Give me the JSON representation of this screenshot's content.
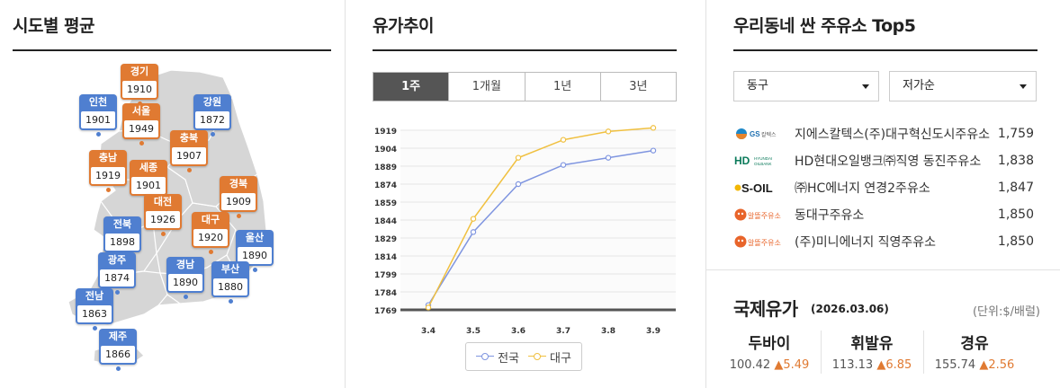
{
  "panels": {
    "sido": {
      "title": "시도별 평균"
    },
    "trend": {
      "title": "유가추이"
    },
    "top5": {
      "title": "우리동네 싼 주유소 Top5"
    }
  },
  "regions": [
    {
      "name": "경기",
      "value": "1910",
      "color": "orange"
    },
    {
      "name": "인천",
      "value": "1901",
      "color": "blue"
    },
    {
      "name": "서울",
      "value": "1949",
      "color": "orange"
    },
    {
      "name": "강원",
      "value": "1872",
      "color": "blue"
    },
    {
      "name": "충북",
      "value": "1907",
      "color": "orange"
    },
    {
      "name": "충남",
      "value": "1919",
      "color": "orange"
    },
    {
      "name": "세종",
      "value": "1901",
      "color": "orange"
    },
    {
      "name": "경북",
      "value": "1909",
      "color": "orange"
    },
    {
      "name": "대전",
      "value": "1926",
      "color": "orange"
    },
    {
      "name": "전북",
      "value": "1898",
      "color": "blue"
    },
    {
      "name": "대구",
      "value": "1920",
      "color": "orange"
    },
    {
      "name": "울산",
      "value": "1890",
      "color": "blue"
    },
    {
      "name": "광주",
      "value": "1874",
      "color": "blue"
    },
    {
      "name": "경남",
      "value": "1890",
      "color": "blue"
    },
    {
      "name": "부산",
      "value": "1880",
      "color": "blue"
    },
    {
      "name": "전남",
      "value": "1863",
      "color": "blue"
    },
    {
      "name": "제주",
      "value": "1866",
      "color": "blue"
    }
  ],
  "colors": {
    "blue": "#4f7fd0",
    "orange": "#e07a32",
    "national_line": "#7f95e0",
    "daegu_line": "#f0c040",
    "up": "#e07a32"
  },
  "tabs": [
    {
      "label": "1주",
      "active": true
    },
    {
      "label": "1개월",
      "active": false
    },
    {
      "label": "1년",
      "active": false
    },
    {
      "label": "3년",
      "active": false
    }
  ],
  "chart_data": {
    "type": "line",
    "x": [
      "3.4",
      "3.5",
      "3.6",
      "3.7",
      "3.8",
      "3.9"
    ],
    "yticks": [
      1769,
      1784,
      1799,
      1814,
      1829,
      1844,
      1859,
      1874,
      1889,
      1904,
      1919
    ],
    "ylim": [
      1769,
      1919
    ],
    "grid": true,
    "series": [
      {
        "name": "전국",
        "color": "#7f95e0",
        "values": [
          1773,
          1834,
          1874,
          1890,
          1896,
          1902
        ]
      },
      {
        "name": "대구",
        "color": "#f0c040",
        "values": [
          1771,
          1845,
          1896,
          1911,
          1918,
          1921
        ]
      }
    ]
  },
  "filters": {
    "district": "동구",
    "sort": "저가순"
  },
  "stations": [
    {
      "brand": "GS칼텍스",
      "name": "지에스칼텍스(주)대구혁신도시주유소",
      "price": "1,759"
    },
    {
      "brand": "HD HYUNDAI OILBANK",
      "name": "HD현대오일뱅크㈜직영 동진주유소",
      "price": "1,838"
    },
    {
      "brand": "S-OIL",
      "name": "㈜HC에너지 연경2주유소",
      "price": "1,847"
    },
    {
      "brand": "알뜰주유소",
      "name": "동대구주유소",
      "price": "1,850"
    },
    {
      "brand": "알뜰주유소",
      "name": "(주)미니에너지 직영주유소",
      "price": "1,850"
    }
  ],
  "intl": {
    "title": "국제유가",
    "date": "(2026.03.06)",
    "unit": "(단위:$/배럴)",
    "items": [
      {
        "name": "두바이",
        "price": "100.42",
        "change": "▲5.49"
      },
      {
        "name": "휘발유",
        "price": "113.13",
        "change": "▲6.85"
      },
      {
        "name": "경유",
        "price": "155.74",
        "change": "▲2.56"
      }
    ]
  }
}
